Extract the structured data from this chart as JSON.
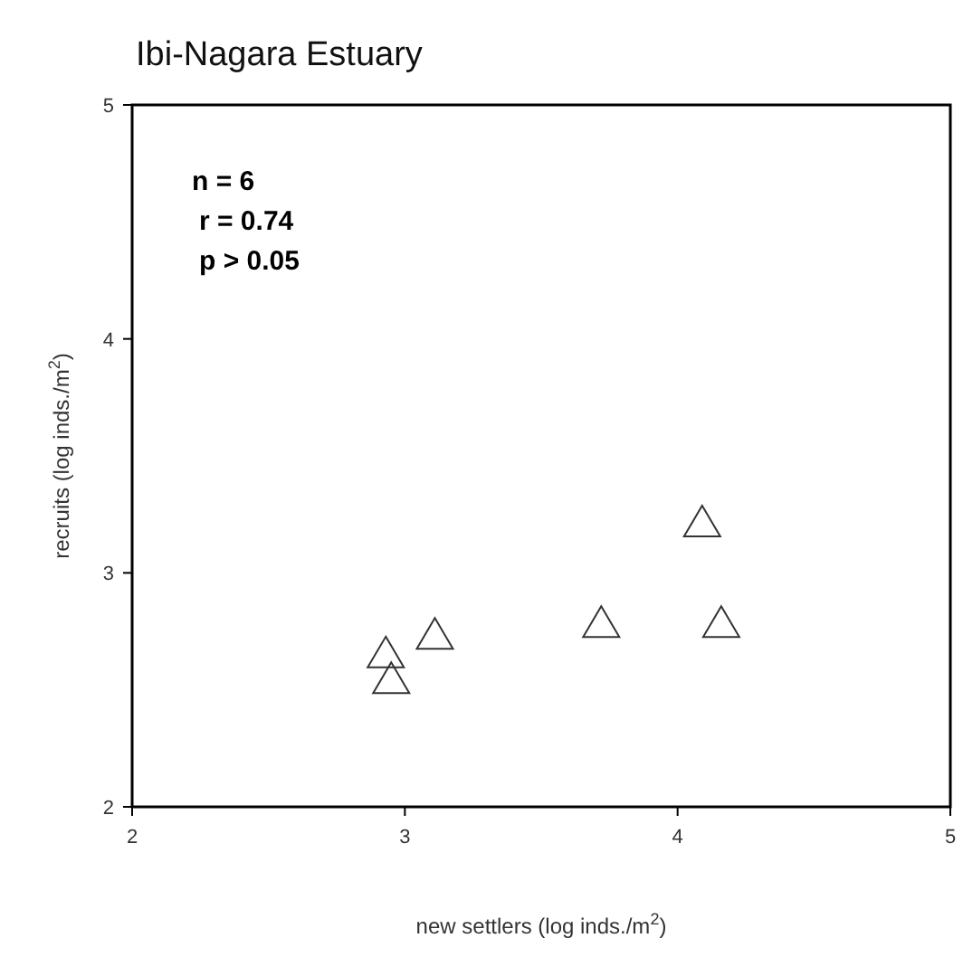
{
  "chart_data": {
    "type": "scatter",
    "title": "Ibi-Nagara Estuary",
    "xlabel": "new settlers (log inds./m$^{2}$)",
    "ylabel": "recruits (log inds./m$^{2}$)",
    "annotations": [
      "n = 6",
      "r = 0.74",
      "p > 0.05"
    ],
    "x": [
      2.93,
      2.95,
      3.11,
      3.72,
      4.09,
      4.16
    ],
    "values": [
      2.65,
      2.54,
      2.73,
      2.78,
      3.21,
      2.78
    ],
    "color": "#333333",
    "marker": "triangle",
    "grid": false,
    "xlim": [
      2,
      5
    ],
    "xticks": [
      2,
      3,
      4,
      5
    ],
    "ylim": [
      2,
      5
    ],
    "yticks": [
      2,
      3,
      4,
      5
    ]
  }
}
